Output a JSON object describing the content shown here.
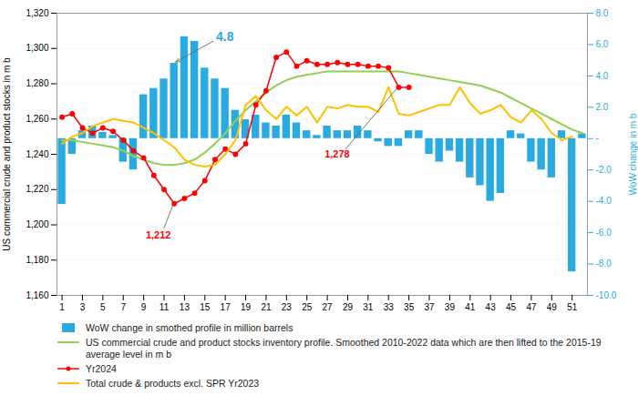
{
  "chart_data": {
    "type": "line",
    "x": [
      1,
      2,
      3,
      4,
      5,
      6,
      7,
      8,
      9,
      10,
      11,
      12,
      13,
      14,
      15,
      16,
      17,
      18,
      19,
      20,
      21,
      22,
      23,
      24,
      25,
      26,
      27,
      28,
      29,
      30,
      31,
      32,
      33,
      34,
      35,
      36,
      37,
      38,
      39,
      40,
      41,
      42,
      43,
      44,
      45,
      46,
      47,
      48,
      49,
      50,
      51,
      52
    ],
    "xlim": [
      0.5,
      52.5
    ],
    "xticks": [
      1,
      3,
      5,
      7,
      9,
      11,
      13,
      15,
      17,
      19,
      21,
      23,
      25,
      27,
      29,
      31,
      33,
      35,
      37,
      39,
      41,
      43,
      45,
      47,
      49,
      51
    ],
    "ylabel": "US commercial crude and product stocks in m b",
    "y2label": "WoW change in m b",
    "ylim": [
      1160,
      1320
    ],
    "yticks": [
      {
        "value": 1160,
        "label": "1,160"
      },
      {
        "value": 1180,
        "label": "1,180"
      },
      {
        "value": 1200,
        "label": "1,200"
      },
      {
        "value": 1220,
        "label": "1,220"
      },
      {
        "value": 1240,
        "label": "1,240"
      },
      {
        "value": 1260,
        "label": "1,260"
      },
      {
        "value": 1280,
        "label": "1,280"
      },
      {
        "value": 1300,
        "label": "1,300"
      },
      {
        "value": 1320,
        "label": "1,320"
      }
    ],
    "y2lim": [
      -10.0,
      8.0
    ],
    "y2ticks": [
      {
        "value": -10.0,
        "label": "-10.0"
      },
      {
        "value": -8.0,
        "label": "-8.0"
      },
      {
        "value": -6.0,
        "label": "-6.0"
      },
      {
        "value": -4.0,
        "label": "-4.0"
      },
      {
        "value": -2.0,
        "label": "-2.0"
      },
      {
        "value": 0.0,
        "label": "-"
      },
      {
        "value": 2.0,
        "label": "2.0"
      },
      {
        "value": 4.0,
        "label": "4.0"
      },
      {
        "value": 6.0,
        "label": "6.0"
      },
      {
        "value": 8.0,
        "label": "8.0"
      }
    ],
    "grid": true,
    "legend": "bottom",
    "series": [
      {
        "name": "WoW change in smothed profile in million barrels",
        "type": "bar",
        "axis": "y2",
        "color": "#29ABE2",
        "values": [
          -4.2,
          -1.0,
          0.5,
          0.8,
          0.4,
          0.2,
          -1.5,
          -2.0,
          2.8,
          3.2,
          3.8,
          4.8,
          6.5,
          6.2,
          4.5,
          3.8,
          3.2,
          1.8,
          1.2,
          1.5,
          1.0,
          0.8,
          1.5,
          1.0,
          0.5,
          0.2,
          0.8,
          0.5,
          0.5,
          0.8,
          0.5,
          -0.2,
          -0.5,
          -0.5,
          0.5,
          0.5,
          -1.0,
          -1.5,
          -0.8,
          -1.5,
          -2.5,
          -3.0,
          -4.0,
          -3.5,
          0.5,
          0.3,
          -1.5,
          -2.0,
          -2.5,
          0.5,
          -8.5,
          0.3
        ]
      },
      {
        "name": "US commercial crude and product stocks inventory profile. Smoothed 2010-2022 data which are then lifted to the 2015-19 average level in m b",
        "type": "line",
        "color": "#92D050",
        "values": [
          1248,
          1248,
          1247,
          1246,
          1245,
          1244,
          1242,
          1239,
          1237,
          1235,
          1234,
          1234,
          1235,
          1237,
          1241,
          1246,
          1252,
          1259,
          1265,
          1270,
          1275,
          1279,
          1282,
          1284,
          1285,
          1286,
          1287,
          1287,
          1287,
          1287,
          1287,
          1287,
          1287,
          1287,
          1286,
          1285,
          1284,
          1283,
          1282,
          1281,
          1280,
          1279,
          1277,
          1275,
          1272,
          1269,
          1266,
          1263,
          1260,
          1257,
          1254,
          1252
        ]
      },
      {
        "name": "Yr2024",
        "type": "line",
        "color": "#FF0000",
        "marker": "circle",
        "values": [
          1261,
          1263,
          1255,
          1252,
          1255,
          1253,
          1248,
          1242,
          1238,
          1228,
          1220,
          1212,
          1215,
          1218,
          1225,
          1237,
          1243,
          1240,
          1246,
          1268,
          1276,
          1295,
          1298,
          1290,
          1293,
          1291,
          1291,
          1292,
          1291,
          1291,
          1290,
          1290,
          1289,
          1278,
          1278,
          null,
          null,
          null,
          null,
          null,
          null,
          null,
          null,
          null,
          null,
          null,
          null,
          null,
          null,
          null,
          null,
          null
        ]
      },
      {
        "name": "Total crude & products excl. SPR Yr2023",
        "type": "line",
        "color": "#FFC000",
        "values": [
          1246,
          1250,
          1252,
          1256,
          1258,
          1260,
          1259,
          1258,
          1255,
          1252,
          1248,
          1244,
          1237,
          1234,
          1233,
          1234,
          1240,
          1248,
          1268,
          1273,
          1265,
          1260,
          1267,
          1262,
          1267,
          1258,
          1267,
          1266,
          1268,
          1267,
          1267,
          1264,
          1278,
          1263,
          1262,
          1264,
          1266,
          1268,
          1268,
          1278,
          1269,
          1263,
          1265,
          1268,
          1261,
          1258,
          1265,
          1260,
          1252,
          1248,
          1250,
          null
        ]
      }
    ],
    "annotations": [
      {
        "text": "4.8",
        "x": 12,
        "y": 4.8,
        "axis": "y2",
        "color": "#29ABE2"
      },
      {
        "text": "1,212",
        "x": 12,
        "y": 1212,
        "color": "#FF0000"
      },
      {
        "text": "1,278",
        "x": 34,
        "y": 1278,
        "color": "#FF0000"
      }
    ]
  }
}
